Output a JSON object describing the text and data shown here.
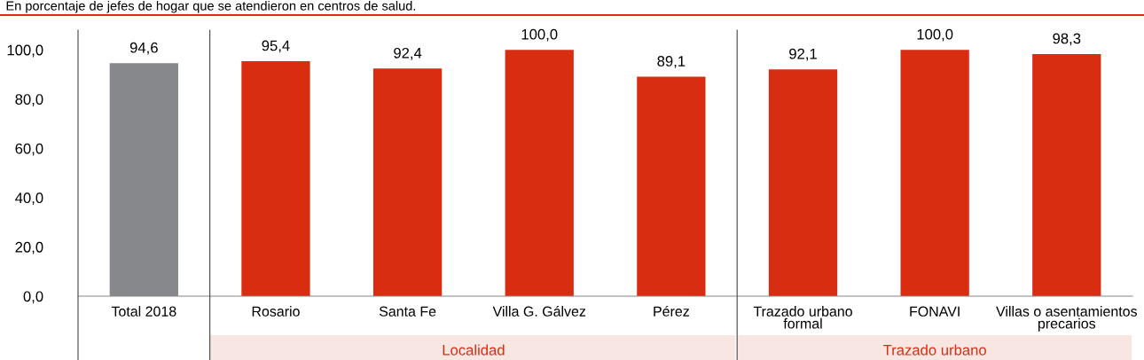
{
  "chart_data": {
    "type": "bar",
    "title": "En porcentaje de jefes de hogar que se atendieron en centros de salud.",
    "categories": [
      "Total 2018",
      "Rosario",
      "Santa Fe",
      "Villa G. Gálvez",
      "Pérez",
      "Trazado urbano\nformal",
      "FONAVI",
      "Villas o asentamientos\nprecarios"
    ],
    "values": [
      94.6,
      95.4,
      92.4,
      100.0,
      89.1,
      92.1,
      100.0,
      98.3
    ],
    "colors": [
      "#87888c",
      "#d92d12",
      "#d92d12",
      "#d92d12",
      "#d92d12",
      "#d92d12",
      "#d92d12",
      "#d92d12"
    ],
    "value_labels": [
      "94,6",
      "95,4",
      "92,4",
      "100,0",
      "89,1",
      "92,1",
      "100,0",
      "98,3"
    ],
    "ylim": [
      0,
      108
    ],
    "yticks": [
      {
        "value": 0,
        "label": "0,0"
      },
      {
        "value": 20,
        "label": "20,0"
      },
      {
        "value": 40,
        "label": "40,0"
      },
      {
        "value": 60,
        "label": "60,0"
      },
      {
        "value": 80,
        "label": "80,0"
      },
      {
        "value": 100,
        "label": "100,0"
      }
    ],
    "grid": false,
    "annotations": [
      "Localidad",
      "Trazado urbano"
    ]
  }
}
